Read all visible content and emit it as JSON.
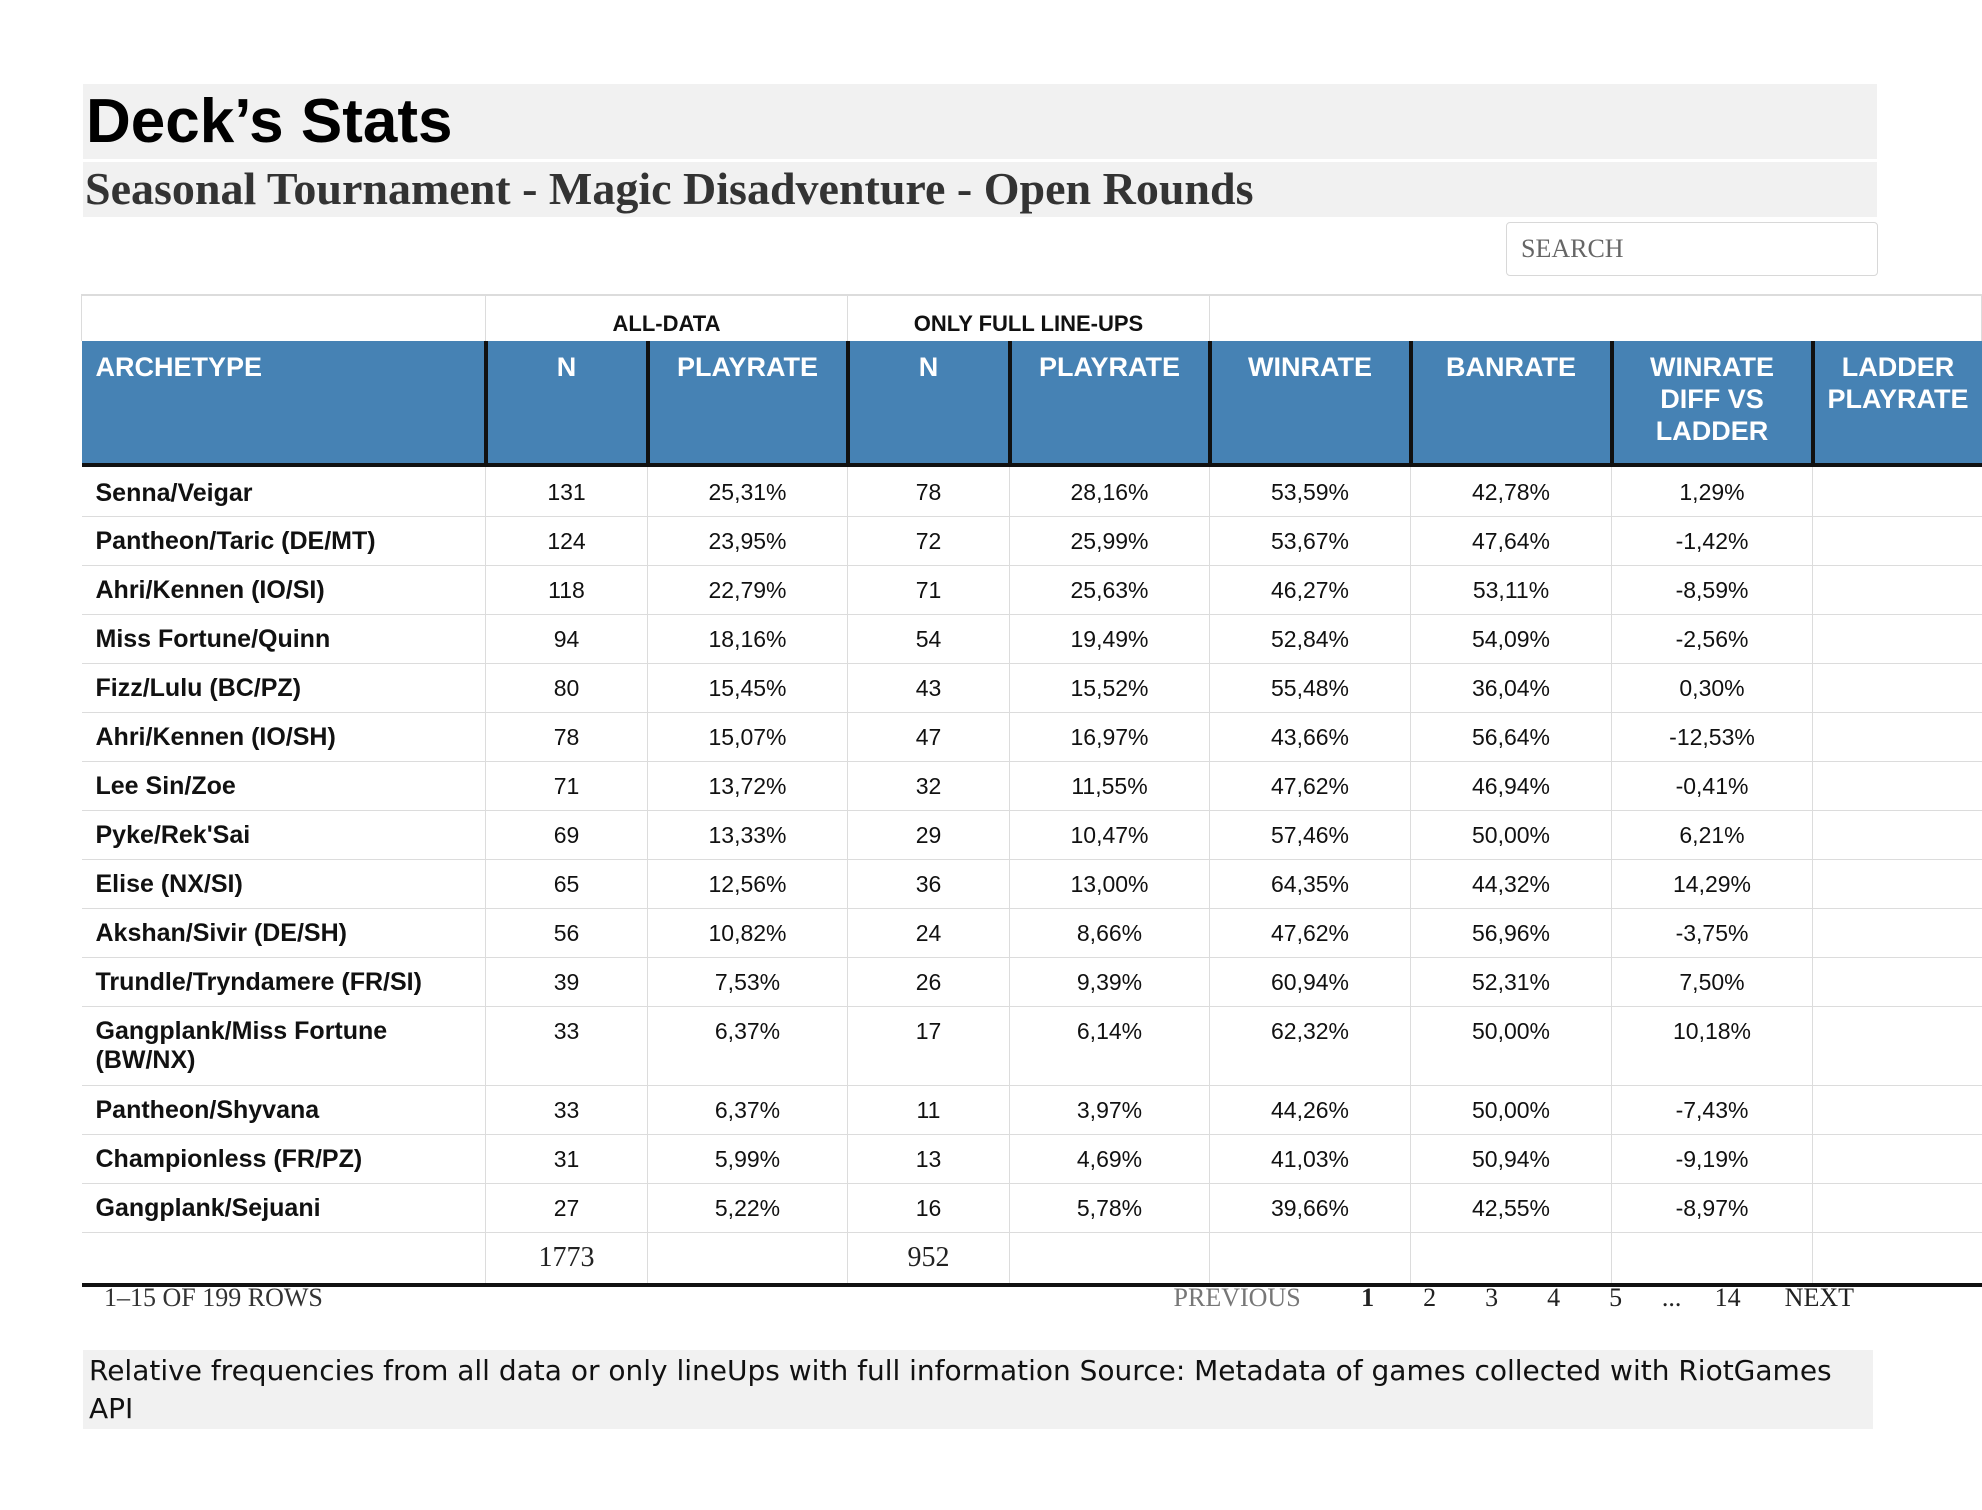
{
  "page": {
    "title": "Deck’s Stats",
    "subtitle": "Seasonal Tournament - Magic Disadventure - Open Rounds"
  },
  "search": {
    "placeholder": "SEARCH"
  },
  "table": {
    "groups": [
      "ALL-DATA",
      "ONLY FULL LINE-UPS"
    ],
    "headers": [
      "ARCHETYPE",
      "N",
      "PLAYRATE",
      "N",
      "PLAYRATE",
      "WINRATE",
      "BANRATE",
      "WINRATE DIFF VS LADDER",
      "LADDER PLAYRATE"
    ],
    "rows": [
      {
        "arch": "Senna/Veigar",
        "n_all": "131",
        "pr_all": "25,31%",
        "n_full": "78",
        "pr_full": "28,16%",
        "winrate": "53,59%",
        "banrate": "42,78%",
        "diff": "1,29%"
      },
      {
        "arch": "Pantheon/Taric (DE/MT)",
        "n_all": "124",
        "pr_all": "23,95%",
        "n_full": "72",
        "pr_full": "25,99%",
        "winrate": "53,67%",
        "banrate": "47,64%",
        "diff": "-1,42%"
      },
      {
        "arch": "Ahri/Kennen (IO/SI)",
        "n_all": "118",
        "pr_all": "22,79%",
        "n_full": "71",
        "pr_full": "25,63%",
        "winrate": "46,27%",
        "banrate": "53,11%",
        "diff": "-8,59%"
      },
      {
        "arch": "Miss Fortune/Quinn",
        "n_all": "94",
        "pr_all": "18,16%",
        "n_full": "54",
        "pr_full": "19,49%",
        "winrate": "52,84%",
        "banrate": "54,09%",
        "diff": "-2,56%"
      },
      {
        "arch": "Fizz/Lulu (BC/PZ)",
        "n_all": "80",
        "pr_all": "15,45%",
        "n_full": "43",
        "pr_full": "15,52%",
        "winrate": "55,48%",
        "banrate": "36,04%",
        "diff": "0,30%"
      },
      {
        "arch": "Ahri/Kennen (IO/SH)",
        "n_all": "78",
        "pr_all": "15,07%",
        "n_full": "47",
        "pr_full": "16,97%",
        "winrate": "43,66%",
        "banrate": "56,64%",
        "diff": "-12,53%"
      },
      {
        "arch": "Lee Sin/Zoe",
        "n_all": "71",
        "pr_all": "13,72%",
        "n_full": "32",
        "pr_full": "11,55%",
        "winrate": "47,62%",
        "banrate": "46,94%",
        "diff": "-0,41%"
      },
      {
        "arch": "Pyke/Rek'Sai",
        "n_all": "69",
        "pr_all": "13,33%",
        "n_full": "29",
        "pr_full": "10,47%",
        "winrate": "57,46%",
        "banrate": "50,00%",
        "diff": "6,21%"
      },
      {
        "arch": "Elise (NX/SI)",
        "n_all": "65",
        "pr_all": "12,56%",
        "n_full": "36",
        "pr_full": "13,00%",
        "winrate": "64,35%",
        "banrate": "44,32%",
        "diff": "14,29%"
      },
      {
        "arch": "Akshan/Sivir (DE/SH)",
        "n_all": "56",
        "pr_all": "10,82%",
        "n_full": "24",
        "pr_full": "8,66%",
        "winrate": "47,62%",
        "banrate": "56,96%",
        "diff": "-3,75%"
      },
      {
        "arch": "Trundle/Tryndamere (FR/SI)",
        "n_all": "39",
        "pr_all": "7,53%",
        "n_full": "26",
        "pr_full": "9,39%",
        "winrate": "60,94%",
        "banrate": "52,31%",
        "diff": "7,50%"
      },
      {
        "arch": "Gangplank/Miss Fortune (BW/NX)",
        "n_all": "33",
        "pr_all": "6,37%",
        "n_full": "17",
        "pr_full": "6,14%",
        "winrate": "62,32%",
        "banrate": "50,00%",
        "diff": "10,18%"
      },
      {
        "arch": "Pantheon/Shyvana",
        "n_all": "33",
        "pr_all": "6,37%",
        "n_full": "11",
        "pr_full": "3,97%",
        "winrate": "44,26%",
        "banrate": "50,00%",
        "diff": "-7,43%"
      },
      {
        "arch": "Championless (FR/PZ)",
        "n_all": "31",
        "pr_all": "5,99%",
        "n_full": "13",
        "pr_full": "4,69%",
        "winrate": "41,03%",
        "banrate": "50,94%",
        "diff": "-9,19%"
      },
      {
        "arch": "Gangplank/Sejuani",
        "n_all": "27",
        "pr_all": "5,22%",
        "n_full": "16",
        "pr_full": "5,78%",
        "winrate": "39,66%",
        "banrate": "42,55%",
        "diff": "-8,97%"
      }
    ],
    "totals": {
      "n_all": "1773",
      "n_full": "952"
    }
  },
  "pagination": {
    "info": "1–15 OF 199 ROWS",
    "previous": "PREVIOUS",
    "pages": [
      "1",
      "2",
      "3",
      "4",
      "5"
    ],
    "ellipsis": "...",
    "last": "14",
    "next": "NEXT",
    "current": "1"
  },
  "caption": "Relative frequencies from all data or only lineUps with full information Source: Metadata of games collected with RiotGames API"
}
